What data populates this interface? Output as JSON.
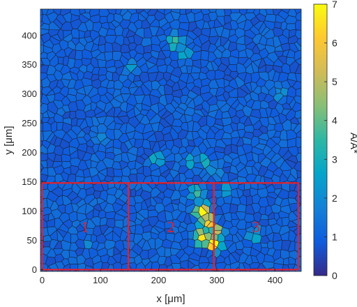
{
  "chart_data": {
    "type": "heatmap",
    "subtype": "voronoi-grain-map",
    "xlabel": "x [μm]",
    "ylabel": "y [μm]",
    "xlim": [
      -3,
      445
    ],
    "ylim": [
      -3,
      445
    ],
    "xticks": [
      0,
      100,
      200,
      300,
      400
    ],
    "yticks": [
      0,
      50,
      100,
      150,
      200,
      250,
      300,
      350,
      400
    ],
    "colorbar": {
      "label": "A/A*",
      "range": [
        0,
        7
      ],
      "ticks": [
        0,
        1,
        2,
        3,
        4,
        5,
        6,
        7
      ],
      "colormap": "parula",
      "stops": [
        "#352a87",
        "#0f5cdd",
        "#1481d6",
        "#06a4ca",
        "#2eb7a4",
        "#87bf77",
        "#d1bb59",
        "#fec832",
        "#f9fb0e"
      ]
    },
    "background_value": 1.0,
    "hotspots": [
      {
        "x": 230,
        "y": 390,
        "value": 4.0
      },
      {
        "x": 245,
        "y": 370,
        "value": 3.3
      },
      {
        "x": 150,
        "y": 345,
        "value": 2.6
      },
      {
        "x": 280,
        "y": 185,
        "value": 2.9
      },
      {
        "x": 300,
        "y": 170,
        "value": 2.7
      },
      {
        "x": 195,
        "y": 190,
        "value": 3.2
      },
      {
        "x": 255,
        "y": 185,
        "value": 2.8
      },
      {
        "x": 265,
        "y": 130,
        "value": 3.8
      },
      {
        "x": 320,
        "y": 135,
        "value": 3.1
      },
      {
        "x": 275,
        "y": 100,
        "value": 6.9
      },
      {
        "x": 285,
        "y": 80,
        "value": 6.3
      },
      {
        "x": 275,
        "y": 55,
        "value": 6.6
      },
      {
        "x": 295,
        "y": 45,
        "value": 7.0
      },
      {
        "x": 300,
        "y": 65,
        "value": 5.0
      },
      {
        "x": 365,
        "y": 60,
        "value": 3.1
      },
      {
        "x": 80,
        "y": 40,
        "value": 2.3
      },
      {
        "x": 410,
        "y": 300,
        "value": 2.4
      },
      {
        "x": 100,
        "y": 220,
        "value": 2.3
      }
    ],
    "regions": [
      {
        "label": "1",
        "x": [
          0,
          148
        ],
        "y": [
          0,
          148
        ]
      },
      {
        "label": "2",
        "x": [
          148,
          295
        ],
        "y": [
          0,
          148
        ]
      },
      {
        "label": "3",
        "x": [
          295,
          440
        ],
        "y": [
          0,
          148
        ]
      }
    ],
    "region_color": "#e8202a"
  }
}
